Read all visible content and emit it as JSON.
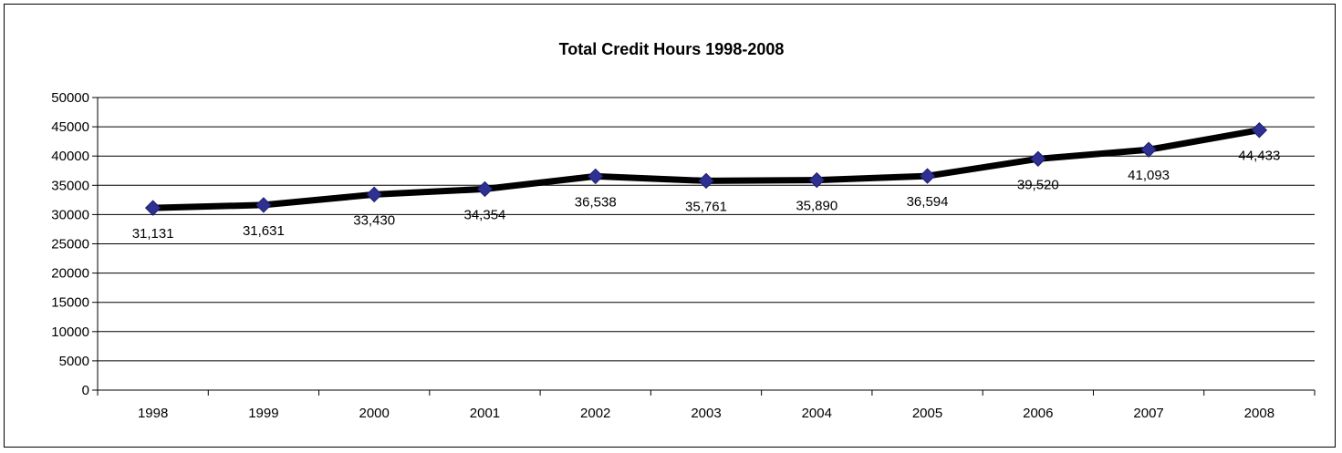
{
  "chart_data": {
    "type": "line",
    "title": "Total Credit Hours 1998-2008",
    "xlabel": "",
    "ylabel": "",
    "categories": [
      "1998",
      "1999",
      "2000",
      "2001",
      "2002",
      "2003",
      "2004",
      "2005",
      "2006",
      "2007",
      "2008"
    ],
    "series": [
      {
        "values": [
          31131,
          31631,
          33430,
          34354,
          36538,
          35761,
          35890,
          36594,
          39520,
          41093,
          44433
        ],
        "labels": [
          "31,131",
          "31,631",
          "33,430",
          "34,354",
          "36,538",
          "35,761",
          "35,890",
          "36,594",
          "39,520",
          "41,093",
          "44,433"
        ],
        "line_color": "#000000",
        "marker_color": "#2E3192",
        "marker": "diamond"
      }
    ],
    "ylim": [
      0,
      50000
    ],
    "yticks": [
      0,
      5000,
      10000,
      15000,
      20000,
      25000,
      30000,
      35000,
      40000,
      45000,
      50000
    ],
    "grid": true,
    "legend": "none"
  }
}
